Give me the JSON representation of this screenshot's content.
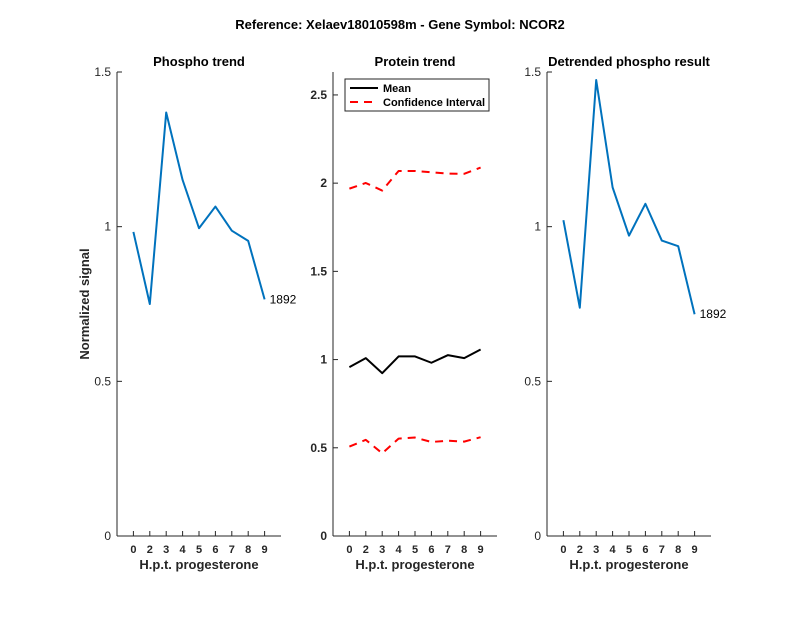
{
  "chart_data": {
    "title": "Reference:  Xelaev18010598m - Gene Symbol:  NCOR2",
    "panels": [
      {
        "type": "line",
        "title": "Phospho trend",
        "xlabel": "H.p.t. progesterone",
        "ylabel": "Normalized signal",
        "categories": [
          "0",
          "2",
          "3",
          "4",
          "5",
          "6",
          "7",
          "8",
          "9"
        ],
        "ylim": [
          0,
          1.5
        ],
        "yticks": [
          "0",
          "0.5",
          "1",
          "1.5"
        ],
        "series": [
          {
            "values": [
              0.983,
              0.75,
              1.369,
              1.151,
              0.995,
              1.065,
              0.987,
              0.954,
              0.765
            ],
            "color": "#0072BD",
            "style": "solid",
            "end_label": "1892"
          }
        ]
      },
      {
        "type": "line",
        "title": "Protein trend",
        "xlabel": "H.p.t. progesterone",
        "ylabel": "",
        "categories": [
          "0",
          "2",
          "3",
          "4",
          "5",
          "6",
          "7",
          "8",
          "9"
        ],
        "ylim": [
          0,
          2.63
        ],
        "yticks": [
          "0",
          "0.5",
          "1",
          "1.5",
          "2",
          "2.5"
        ],
        "legend": {
          "placement": "top",
          "entries": [
            "Mean",
            "Confidence Interval"
          ]
        },
        "series": [
          {
            "name": "Mean",
            "values": [
              0.957,
              1.008,
              0.923,
              1.018,
              1.018,
              0.982,
              1.025,
              1.008,
              1.057
            ],
            "color": "#000000",
            "style": "solid"
          },
          {
            "name": "Confidence Interval",
            "values": [
              1.969,
              2.001,
              1.958,
              2.069,
              2.069,
              2.062,
              2.054,
              2.053,
              2.088
            ],
            "color": "#FF0000",
            "style": "dashed"
          },
          {
            "name": "Confidence Interval",
            "values": [
              0.507,
              0.545,
              0.469,
              0.552,
              0.558,
              0.533,
              0.54,
              0.535,
              0.56
            ],
            "color": "#FF0000",
            "style": "dashed"
          }
        ]
      },
      {
        "type": "line",
        "title": "Detrended phospho result",
        "xlabel": "H.p.t. progesterone",
        "ylabel": "",
        "categories": [
          "0",
          "2",
          "3",
          "4",
          "5",
          "6",
          "7",
          "8",
          "9"
        ],
        "ylim": [
          0,
          1.5
        ],
        "yticks": [
          "0",
          "0.5",
          "1",
          "1.5"
        ],
        "series": [
          {
            "values": [
              1.021,
              0.738,
              1.474,
              1.127,
              0.971,
              1.074,
              0.955,
              0.937,
              0.717
            ],
            "color": "#0072BD",
            "style": "solid",
            "end_label": "1892"
          }
        ]
      }
    ]
  }
}
